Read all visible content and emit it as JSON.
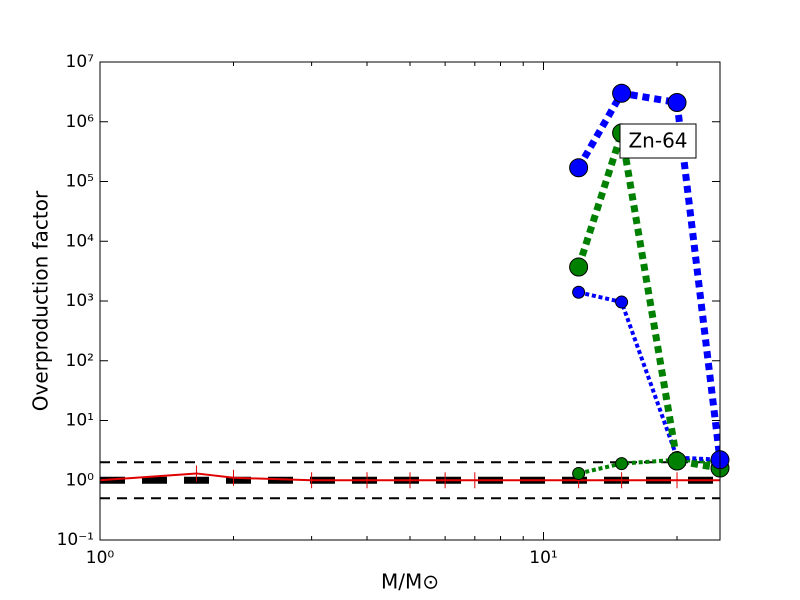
{
  "chart_data": {
    "type": "line",
    "xlabel": "M/M⊙",
    "ylabel": "Overproduction factor",
    "annotation": "Zn-64",
    "xlog": true,
    "ylog": true,
    "xlim": [
      1,
      25
    ],
    "ylim": [
      0.1,
      10000000
    ],
    "xticks": [
      {
        "value": 1,
        "label": "10⁰"
      },
      {
        "value": 10,
        "label": "10¹"
      }
    ],
    "xminorticks": [
      2,
      3,
      4,
      5,
      6,
      7,
      8,
      9,
      20
    ],
    "yticks": [
      {
        "value": 0.1,
        "label": "10⁻¹"
      },
      {
        "value": 1,
        "label": "10⁰"
      },
      {
        "value": 10,
        "label": "10¹"
      },
      {
        "value": 100,
        "label": "10²"
      },
      {
        "value": 1000,
        "label": "10³"
      },
      {
        "value": 10000,
        "label": "10⁴"
      },
      {
        "value": 100000,
        "label": "10⁵"
      },
      {
        "value": 1000000,
        "label": "10⁶"
      },
      {
        "value": 10000000,
        "label": "10⁷"
      }
    ],
    "series": [
      {
        "color": "#000000",
        "style": "dashed",
        "weight": "light",
        "marker": "none",
        "x": [
          1,
          25
        ],
        "values": [
          2,
          2
        ]
      },
      {
        "color": "#000000",
        "style": "dashed",
        "weight": "light",
        "marker": "none",
        "x": [
          1,
          25
        ],
        "values": [
          0.5,
          0.5
        ]
      },
      {
        "color": "#000000",
        "style": "dashed",
        "weight": "heavy",
        "marker": "none",
        "x": [
          1,
          25
        ],
        "values": [
          1,
          1
        ]
      },
      {
        "color": "#e00000",
        "style": "solid",
        "weight": "light",
        "marker": "vline",
        "x": [
          1,
          1.65,
          2,
          3,
          4,
          5,
          6,
          7,
          12,
          15,
          20,
          25
        ],
        "values": [
          1,
          1.3,
          1.1,
          1,
          1,
          1,
          1,
          1,
          1,
          1,
          1,
          1
        ]
      },
      {
        "color": "#008000",
        "style": "dotted",
        "weight": "medium",
        "marker": "small-circle",
        "x": [
          12,
          15,
          20,
          25
        ],
        "values": [
          1.3,
          1.9,
          2.2,
          2
        ]
      },
      {
        "color": "#0000ff",
        "style": "dotted",
        "weight": "medium",
        "marker": "small-circle",
        "x": [
          12,
          15,
          20,
          25
        ],
        "values": [
          1400,
          960,
          2.4,
          2.2
        ]
      },
      {
        "color": "#008000",
        "style": "dotted",
        "weight": "heavy",
        "marker": "large-circle",
        "x": [
          12,
          15,
          20,
          25
        ],
        "values": [
          3700,
          650000,
          2.1,
          1.6
        ]
      },
      {
        "color": "#0000ff",
        "style": "dotted",
        "weight": "heavy",
        "marker": "large-circle",
        "x": [
          12,
          15,
          20,
          25
        ],
        "values": [
          170000,
          3000000,
          2100000,
          2.2
        ]
      }
    ]
  }
}
